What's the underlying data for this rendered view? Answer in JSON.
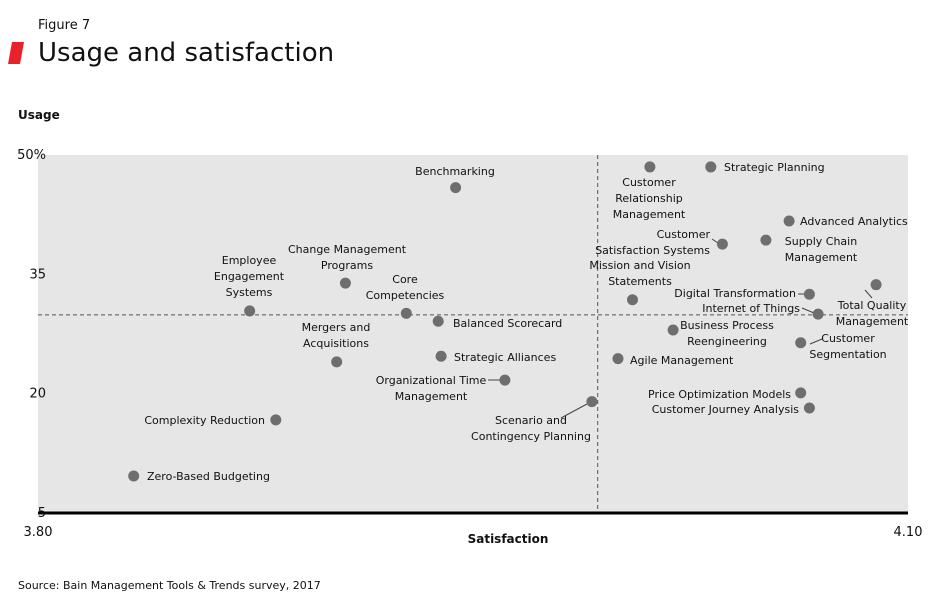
{
  "chart_data": {
    "type": "scatter",
    "kicker": "Figure 7",
    "title": "Usage and satisfaction",
    "y_label": "Usage",
    "x_label": "Satisfaction",
    "source": "Source: Bain Management Tools & Trends survey, 2017",
    "xlim": [
      3.8,
      4.1
    ],
    "xticks": [
      {
        "value": 3.8,
        "label": "3.80"
      },
      {
        "value": 4.1,
        "label": "4.10"
      }
    ],
    "ylim": [
      5,
      50
    ],
    "yticks": [
      5,
      20,
      35,
      {
        "value": 50,
        "label": "50%"
      }
    ],
    "reference_lines": {
      "x": 3.993,
      "y": 29.9
    },
    "color": "#6e6e6e",
    "points": [
      {
        "label": "Zero-Based Budgeting",
        "x": 3.833,
        "y": 9.65
      },
      {
        "label": "Complexity Reduction",
        "x": 3.882,
        "y": 16.7
      },
      {
        "label": "Employee Engagement Systems",
        "x": 3.873,
        "y": 30.4
      },
      {
        "label": "Change Management Programs",
        "x": 3.906,
        "y": 33.9
      },
      {
        "label": "Mergers and Acquisitions",
        "x": 3.903,
        "y": 24.0
      },
      {
        "label": "Core Competencies",
        "x": 3.927,
        "y": 30.1
      },
      {
        "label": "Benchmarking",
        "x": 3.944,
        "y": 45.9
      },
      {
        "label": "Balanced Scorecard",
        "x": 3.938,
        "y": 29.1
      },
      {
        "label": "Strategic Alliances",
        "x": 3.939,
        "y": 24.7
      },
      {
        "label": "Organizational Time Management",
        "x": 3.961,
        "y": 21.7
      },
      {
        "label": "Scenario and Contingency Planning",
        "x": 3.991,
        "y": 19.0
      },
      {
        "label": "Agile Management",
        "x": 4.0,
        "y": 24.4
      },
      {
        "label": "Mission and Vision Statements",
        "x": 4.005,
        "y": 31.8
      },
      {
        "label": "Customer Relationship Management",
        "x": 4.011,
        "y": 48.5
      },
      {
        "label": "Strategic Planning",
        "x": 4.032,
        "y": 48.5
      },
      {
        "label": "Business Process Reengineering",
        "x": 4.019,
        "y": 28.0
      },
      {
        "label": "Customer Satisfaction Systems",
        "x": 4.036,
        "y": 38.8
      },
      {
        "label": "Supply Chain Management",
        "x": 4.051,
        "y": 39.3
      },
      {
        "label": "Advanced Analytics",
        "x": 4.059,
        "y": 41.7
      },
      {
        "label": "Digital Transformation",
        "x": 4.066,
        "y": 32.5
      },
      {
        "label": "Internet of Things",
        "x": 4.069,
        "y": 30.0
      },
      {
        "label": "Total Quality Management",
        "x": 4.089,
        "y": 33.7
      },
      {
        "label": "Customer Segmentation",
        "x": 4.063,
        "y": 26.4
      },
      {
        "label": "Price Optimization Models",
        "x": 4.063,
        "y": 20.1
      },
      {
        "label": "Customer Journey Analysis",
        "x": 4.066,
        "y": 18.2
      }
    ]
  }
}
